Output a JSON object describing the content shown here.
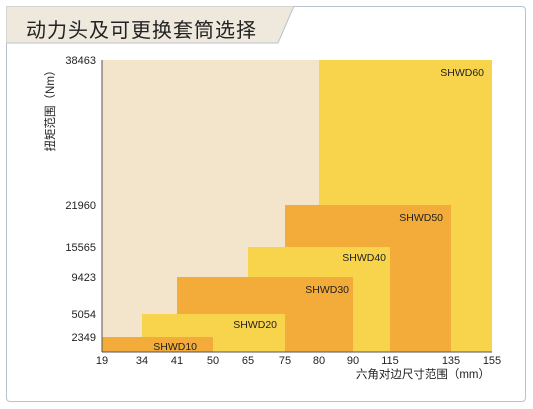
{
  "header": {
    "title": "动力头及可更换套筒选择"
  },
  "colors": {
    "background_area": "#f3e4cc",
    "light_yellow": "#f8d44d",
    "orange": "#f3ab3a",
    "frame": "#b9c3cc",
    "tab_background": "#eee8dd"
  },
  "chart_data": {
    "type": "area",
    "title": "",
    "xlabel": "六角对边尺寸范围（mm）",
    "ylabel": "扭矩范围（Nm）",
    "x_ticks": [
      "19",
      "34",
      "41",
      "50",
      "65",
      "75",
      "80",
      "90",
      "115",
      "135",
      "155"
    ],
    "y_ticks": [
      "38463",
      "21960",
      "15565",
      "9423",
      "5054",
      "2349"
    ],
    "series": [
      {
        "name": "SHWD60",
        "x_range": [
          "80",
          "155"
        ],
        "y_range": [
          0,
          38463
        ],
        "color": "#f8d44d"
      },
      {
        "name": "SHWD50",
        "x_range": [
          "75",
          "135"
        ],
        "y_range": [
          0,
          21960
        ],
        "color": "#f3ab3a"
      },
      {
        "name": "SHWD40",
        "x_range": [
          "65",
          "115"
        ],
        "y_range": [
          0,
          15565
        ],
        "color": "#f8d44d"
      },
      {
        "name": "SHWD30",
        "x_range": [
          "41",
          "90"
        ],
        "y_range": [
          0,
          9423
        ],
        "color": "#f3ab3a"
      },
      {
        "name": "SHWD20",
        "x_range": [
          "34",
          "75"
        ],
        "y_range": [
          0,
          5054
        ],
        "color": "#f8d44d"
      },
      {
        "name": "SHWD10",
        "x_range": [
          "19",
          "50"
        ],
        "y_range": [
          0,
          2349
        ],
        "color": "#f3ab3a"
      }
    ]
  }
}
